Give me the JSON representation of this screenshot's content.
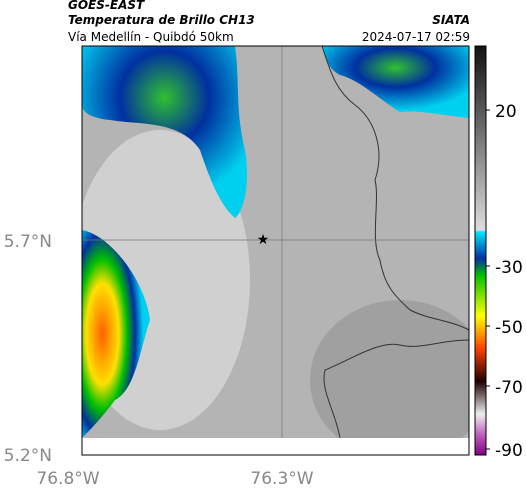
{
  "header": {
    "source": "GOES-EAST",
    "title": "Temperatura de Brillo CH13",
    "credit": "SIATA",
    "subtitle": "Vía Medellín - Quibdó 50km",
    "timestamp": "2024-07-17 02:59"
  },
  "map": {
    "lat_labels": [
      "5.7°N",
      "5.2°N"
    ],
    "lon_labels": [
      "76.8°W",
      "76.3°W"
    ]
  },
  "colorbar": {
    "tick_labels": [
      "20",
      "-30",
      "-50",
      "-70",
      "-90"
    ]
  }
}
